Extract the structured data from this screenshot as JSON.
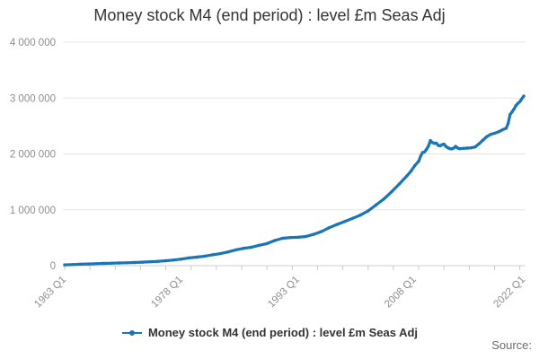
{
  "legend": {
    "label": "Money stock M4 (end period) : level £m Seas Adj"
  },
  "footer": {
    "source_label": "Source:"
  },
  "colors": {
    "series": "#1a75b7",
    "grid": "#e6e6e6",
    "axis": "#cccccc",
    "tick": "#cccccc",
    "axis_label": "#8d8d8d",
    "title_text": "#333333",
    "legend_text": "#333333",
    "source_text": "#6b6b6b"
  },
  "chart_data": {
    "type": "line",
    "title": "Money stock M4 (end period) : level £m Seas Adj",
    "frequency": "quarterly",
    "legend_position": "bottom",
    "grid": "horizontal-only",
    "x_axis": {
      "start": "1963 Q1",
      "end": "2022 Q1",
      "total_quarters": 236,
      "minor_tick_step_quarters": 13,
      "labels": [
        {
          "label": "1963 Q1",
          "quarter": 0
        },
        {
          "label": "1978 Q1",
          "quarter": 60
        },
        {
          "label": "1993 Q1",
          "quarter": 120
        },
        {
          "label": "2008 Q1",
          "quarter": 180
        },
        {
          "label": "2022 Q1",
          "quarter": 236
        }
      ]
    },
    "y_axis": {
      "min": 0,
      "max": 4000000,
      "ticks": [
        {
          "value": 0,
          "label": "0"
        },
        {
          "value": 1000000,
          "label": "1 000 000"
        },
        {
          "value": 2000000,
          "label": "2 000 000"
        },
        {
          "value": 3000000,
          "label": "3 000 000"
        },
        {
          "value": 4000000,
          "label": "4 000 000"
        }
      ]
    },
    "series": [
      {
        "name": "Money stock M4 (end period) : level £m Seas Adj",
        "color": "#1a75b7",
        "points": [
          [
            "1963 Q1",
            15000
          ],
          [
            "1964 Q1",
            20000
          ],
          [
            "1965 Q1",
            25000
          ],
          [
            "1966 Q1",
            30000
          ],
          [
            "1967 Q1",
            35000
          ],
          [
            "1968 Q1",
            40000
          ],
          [
            "1969 Q1",
            44000
          ],
          [
            "1970 Q1",
            48000
          ],
          [
            "1971 Q1",
            52000
          ],
          [
            "1972 Q1",
            57000
          ],
          [
            "1973 Q1",
            62000
          ],
          [
            "1974 Q1",
            70000
          ],
          [
            "1975 Q1",
            77000
          ],
          [
            "1976 Q1",
            88000
          ],
          [
            "1977 Q1",
            102000
          ],
          [
            "1978 Q1",
            118000
          ],
          [
            "1979 Q1",
            140000
          ],
          [
            "1980 Q1",
            152000
          ],
          [
            "1981 Q1",
            170000
          ],
          [
            "1982 Q1",
            195000
          ],
          [
            "1983 Q1",
            215000
          ],
          [
            "1984 Q1",
            245000
          ],
          [
            "1985 Q1",
            282000
          ],
          [
            "1986 Q1",
            310000
          ],
          [
            "1987 Q1",
            330000
          ],
          [
            "1988 Q1",
            365000
          ],
          [
            "1989 Q1",
            395000
          ],
          [
            "1990 Q1",
            450000
          ],
          [
            "1991 Q1",
            490000
          ],
          [
            "1992 Q1",
            503000
          ],
          [
            "1993 Q1",
            507000
          ],
          [
            "1994 Q1",
            522000
          ],
          [
            "1995 Q1",
            560000
          ],
          [
            "1996 Q1",
            610000
          ],
          [
            "1997 Q1",
            680000
          ],
          [
            "1998 Q1",
            738000
          ],
          [
            "1999 Q1",
            790000
          ],
          [
            "2000 Q1",
            846000
          ],
          [
            "2001 Q1",
            905000
          ],
          [
            "2002 Q1",
            980000
          ],
          [
            "2003 Q1",
            1085000
          ],
          [
            "2004 Q1",
            1190000
          ],
          [
            "2005 Q1",
            1320000
          ],
          [
            "2006 Q1",
            1460000
          ],
          [
            "2007 Q1",
            1610000
          ],
          [
            "2007 Q3",
            1690000
          ],
          [
            "2008 Q1",
            1790000
          ],
          [
            "2008 Q3",
            1870000
          ],
          [
            "2008 Q4",
            1960000
          ],
          [
            "2009 Q1",
            2025000
          ],
          [
            "2009 Q2",
            2035000
          ],
          [
            "2009 Q3",
            2080000
          ],
          [
            "2009 Q4",
            2140000
          ],
          [
            "2010 Q1",
            2240000
          ],
          [
            "2010 Q2",
            2205000
          ],
          [
            "2010 Q3",
            2190000
          ],
          [
            "2010 Q4",
            2195000
          ],
          [
            "2011 Q1",
            2155000
          ],
          [
            "2011 Q2",
            2145000
          ],
          [
            "2011 Q3",
            2165000
          ],
          [
            "2011 Q4",
            2175000
          ],
          [
            "2012 Q1",
            2135000
          ],
          [
            "2012 Q2",
            2110000
          ],
          [
            "2012 Q3",
            2095000
          ],
          [
            "2012 Q4",
            2090000
          ],
          [
            "2013 Q1",
            2105000
          ],
          [
            "2013 Q2",
            2135000
          ],
          [
            "2013 Q3",
            2105000
          ],
          [
            "2013 Q4",
            2095000
          ],
          [
            "2014 Q2",
            2100000
          ],
          [
            "2014 Q4",
            2105000
          ],
          [
            "2015 Q2",
            2110000
          ],
          [
            "2015 Q4",
            2125000
          ],
          [
            "2016 Q2",
            2180000
          ],
          [
            "2016 Q4",
            2245000
          ],
          [
            "2017 Q2",
            2310000
          ],
          [
            "2017 Q4",
            2350000
          ],
          [
            "2018 Q2",
            2370000
          ],
          [
            "2018 Q4",
            2395000
          ],
          [
            "2019 Q2",
            2430000
          ],
          [
            "2019 Q4",
            2460000
          ],
          [
            "2020 Q1",
            2550000
          ],
          [
            "2020 Q2",
            2705000
          ],
          [
            "2020 Q3",
            2750000
          ],
          [
            "2020 Q4",
            2805000
          ],
          [
            "2021 Q1",
            2865000
          ],
          [
            "2021 Q2",
            2905000
          ],
          [
            "2021 Q3",
            2935000
          ],
          [
            "2021 Q4",
            2985000
          ],
          [
            "2022 Q1",
            3035000
          ]
        ]
      }
    ]
  }
}
